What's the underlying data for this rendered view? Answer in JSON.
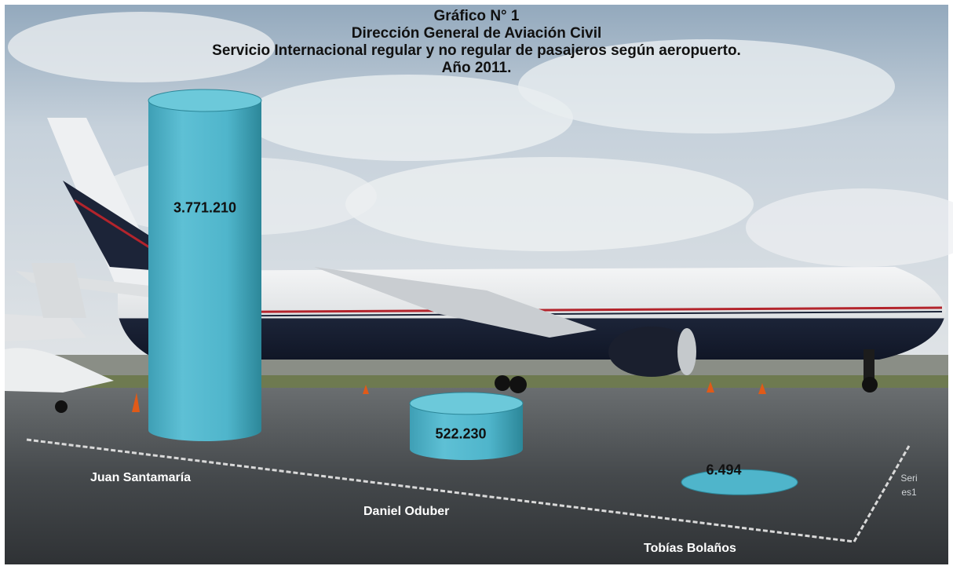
{
  "colors": {
    "cylinder_body": "#4fb5cb",
    "cylinder_top": "#6cc9da",
    "cylinder_shade": "#2c8799",
    "axis": "#d9d9d9"
  },
  "chart_data": {
    "type": "bar",
    "bar_style": "cylinder-3d",
    "title": [
      "Gráfico N° 1",
      "Dirección General de Aviación Civil",
      "Servicio Internacional  regular y no regular  de pasajeros  según aeropuerto.",
      "Año 2011."
    ],
    "categories": [
      "Juan Santamaría",
      "Daniel Oduber",
      "Tobías Bolaños"
    ],
    "series": [
      {
        "name": "Series1",
        "name_display": [
          "Seri",
          "es1"
        ],
        "values": [
          3771210,
          522230,
          6494
        ]
      }
    ],
    "data_labels": [
      "3.771.210",
      "522.230",
      "6.494"
    ],
    "ylim": [
      0,
      3771210
    ],
    "grid": false,
    "legend": "none"
  }
}
